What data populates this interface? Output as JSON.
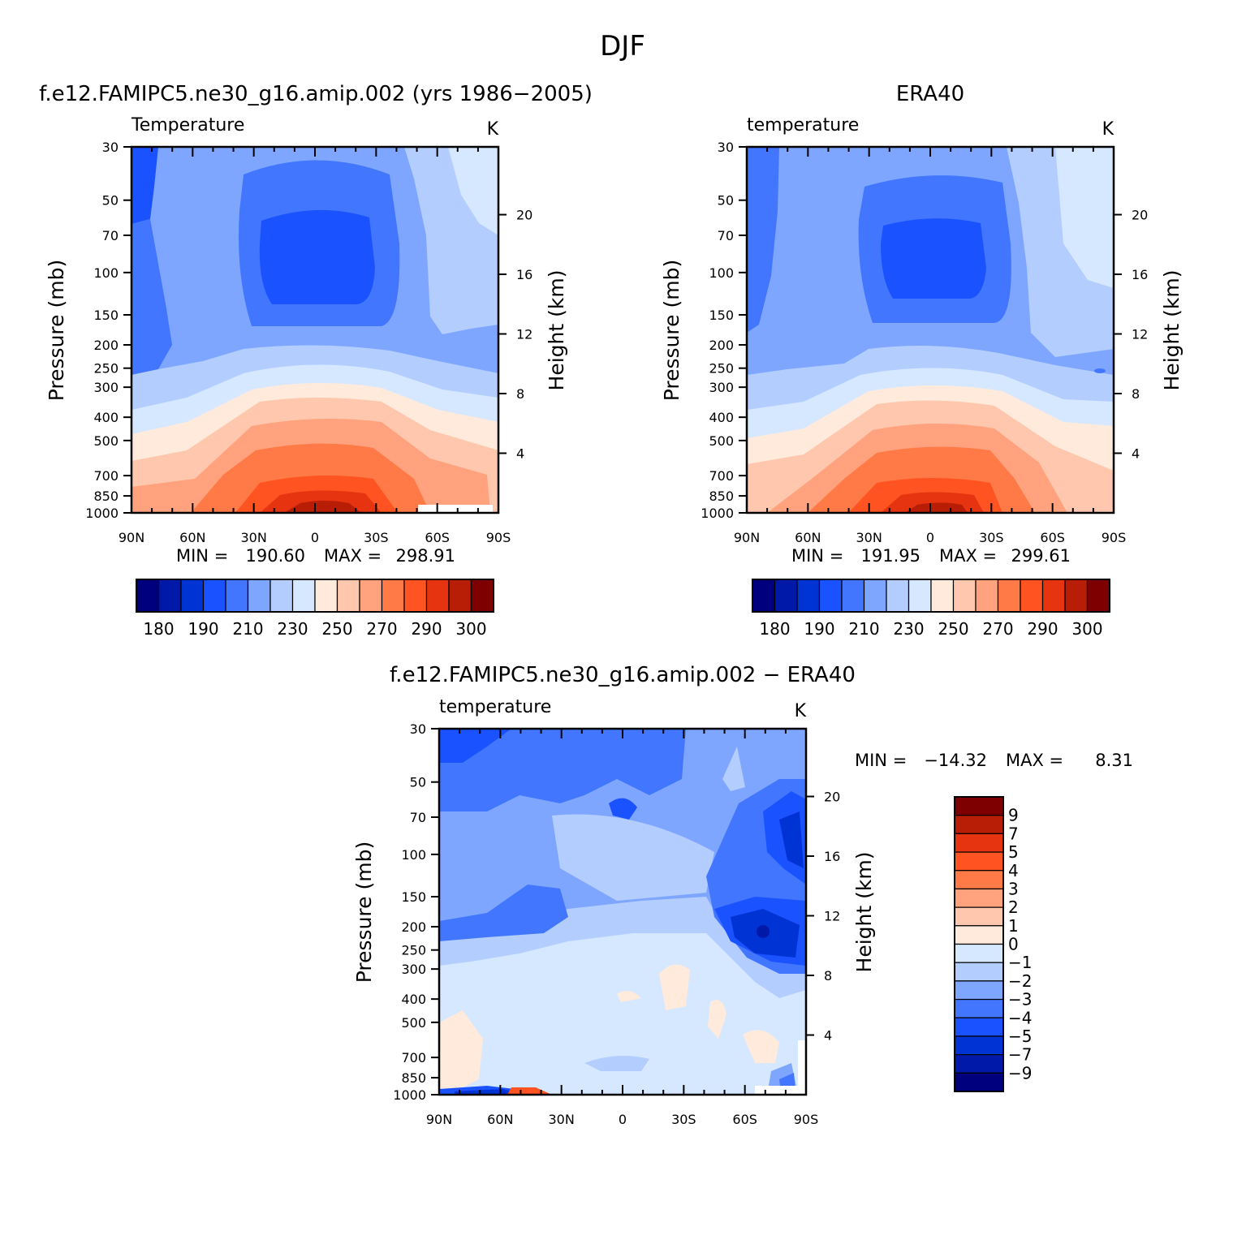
{
  "page": {
    "title": "DJF"
  },
  "colors": {
    "abs": [
      "#00007f",
      "#0019a8",
      "#0033d4",
      "#1a52ff",
      "#4276ff",
      "#7fa6ff",
      "#b3cdff",
      "#d6e8ff",
      "#ffeadb",
      "#ffc7ad",
      "#ffa27d",
      "#ff7a47",
      "#ff5421",
      "#e63310",
      "#b81d05",
      "#7f0000"
    ],
    "diff": [
      "#00007f",
      "#0019a8",
      "#0033d4",
      "#1a52ff",
      "#4276ff",
      "#7fa6ff",
      "#b3cdff",
      "#d6e8ff",
      "#ffeadb",
      "#ffc7ad",
      "#ffa27d",
      "#ff7a47",
      "#ff5421",
      "#e63310",
      "#b81d05",
      "#7f0000"
    ]
  },
  "chart_data": [
    {
      "type": "heatmap",
      "title": "f.e12.FAMIPC5.ne30_g16.amip.002 (yrs 1986-2005)",
      "subtitle_left": "Temperature",
      "subtitle_right": "K",
      "xlabel": "",
      "ylabel": "Pressure (mb)",
      "ylabel_right": "Height (km)",
      "x_ticks": [
        "90N",
        "60N",
        "30N",
        "0",
        "30S",
        "60S",
        "90S"
      ],
      "y_ticks": [
        "30",
        "50",
        "70",
        "100",
        "150",
        "200",
        "250",
        "300",
        "400",
        "500",
        "700",
        "850",
        "1000"
      ],
      "y_ticks_right": [
        "20",
        "16",
        "12",
        "8",
        "4"
      ],
      "stats": {
        "min_label": "MIN = ",
        "min": "190.60",
        "max_label": "MAX = ",
        "max": "298.91"
      },
      "colorbar_labels": [
        "180",
        "190",
        "210",
        "230",
        "250",
        "270",
        "290",
        "300"
      ],
      "ylog": true,
      "ylim": [
        1000,
        30
      ]
    },
    {
      "type": "heatmap",
      "title": "ERA40",
      "subtitle_left": "temperature",
      "subtitle_right": "K",
      "xlabel": "",
      "ylabel": "Pressure (mb)",
      "ylabel_right": "Height (km)",
      "x_ticks": [
        "90N",
        "60N",
        "30N",
        "0",
        "30S",
        "60S",
        "90S"
      ],
      "y_ticks": [
        "30",
        "50",
        "70",
        "100",
        "150",
        "200",
        "250",
        "300",
        "400",
        "500",
        "700",
        "850",
        "1000"
      ],
      "y_ticks_right": [
        "20",
        "16",
        "12",
        "8",
        "4"
      ],
      "stats": {
        "min_label": "MIN = ",
        "min": "191.95",
        "max_label": "MAX = ",
        "max": "299.61"
      },
      "colorbar_labels": [
        "180",
        "190",
        "210",
        "230",
        "250",
        "270",
        "290",
        "300"
      ],
      "ylog": true,
      "ylim": [
        1000,
        30
      ]
    },
    {
      "type": "heatmap",
      "title": "f.e12.FAMIPC5.ne30_g16.amip.002 - ERA40",
      "subtitle_left": "temperature",
      "subtitle_right": "K",
      "xlabel": "",
      "ylabel": "Pressure (mb)",
      "ylabel_right": "Height (km)",
      "x_ticks": [
        "90N",
        "60N",
        "30N",
        "0",
        "30S",
        "60S",
        "90S"
      ],
      "y_ticks": [
        "30",
        "50",
        "70",
        "100",
        "150",
        "200",
        "250",
        "300",
        "400",
        "500",
        "700",
        "850",
        "1000"
      ],
      "y_ticks_right": [
        "20",
        "16",
        "12",
        "8",
        "4"
      ],
      "stats": {
        "min_label": "MIN = ",
        "min": "-14.32",
        "max_label": "MAX = ",
        "max": "8.31"
      },
      "colorbar_labels": [
        "9",
        "7",
        "5",
        "4",
        "3",
        "2",
        "1",
        "0",
        "-1",
        "-2",
        "-3",
        "-4",
        "-5",
        "-7",
        "-9"
      ],
      "ylog": true,
      "ylim": [
        1000,
        30
      ]
    }
  ]
}
